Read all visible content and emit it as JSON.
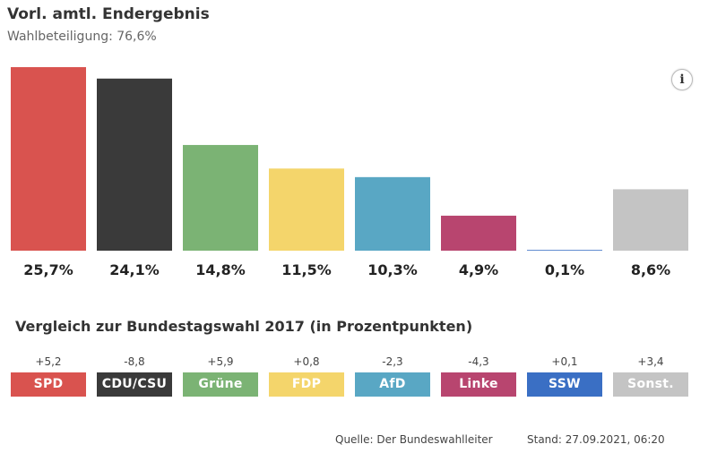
{
  "header": {
    "title": "Vorl. amtl. Endergebnis",
    "subtitle": "Wahlbeteiligung: 76,6%"
  },
  "info": {
    "icon": "info-icon",
    "label": "i"
  },
  "chart_data": {
    "type": "bar",
    "title": "Vorl. amtl. Endergebnis",
    "subtitle": "Wahlbeteiligung: 76,6%",
    "categories": [
      "SPD",
      "CDU/CSU",
      "Grüne",
      "FDP",
      "AfD",
      "Linke",
      "SSW",
      "Sonst."
    ],
    "values": [
      25.7,
      24.1,
      14.8,
      11.5,
      10.3,
      4.9,
      0.1,
      8.6
    ],
    "value_labels": [
      "25,7%",
      "24,1%",
      "14,8%",
      "11,5%",
      "10,3%",
      "4,9%",
      "0,1%",
      "8,6%"
    ],
    "colors": [
      "#d9534f",
      "#3a3a3a",
      "#7bb374",
      "#f4d56b",
      "#59a7c4",
      "#b8456f",
      "#3a6fc4",
      "#c4c4c4"
    ],
    "ylim": [
      0,
      25.7
    ],
    "xlabel": "",
    "ylabel": "",
    "grid": false,
    "legend": "none"
  },
  "comparison": {
    "title": "Vergleich zur Bundestagswahl 2017 (in Prozentpunkten)",
    "changes": [
      "+5,2",
      "-8,8",
      "+5,9",
      "+0,8",
      "-2,3",
      "-4,3",
      "+0,1",
      "+3,4"
    ]
  },
  "footer": {
    "source": "Quelle: Der Bundeswahlleiter",
    "stand": "Stand: 27.09.2021, 06:20"
  }
}
